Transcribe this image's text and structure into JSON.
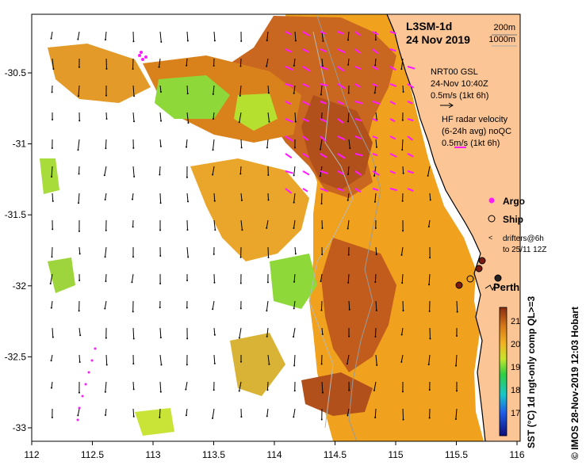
{
  "title": {
    "product": "L3SM-1d",
    "date": "24 Nov 2019"
  },
  "isobaths": [
    "200m",
    "1000m"
  ],
  "vector_legend": {
    "gsl_title": "NRT00 GSL",
    "gsl_time": "24-Nov 10:40Z",
    "gsl_scale": "0.5m/s (1kt 6h)",
    "hf_title": "HF radar velocity",
    "hf_sub": "(6-24h avg) noQC",
    "hf_scale": "0.5m/s (1kt 6h)"
  },
  "legend": {
    "argo": "Argo",
    "ship": "Ship",
    "drifters_line1": "drifters@6h",
    "drifters_line2": "to 25/11 12Z"
  },
  "place": "Perth",
  "colorbar": {
    "label": "SST (°C) 1d ngt-only comp QL>=3",
    "ticks": [
      "21",
      "20",
      "19",
      "18",
      "17"
    ]
  },
  "credit": "© IMOS 28-Nov-2019 12:03 Hobart",
  "axes": {
    "x_ticks": [
      "112",
      "112.5",
      "113",
      "113.5",
      "114",
      "114.5",
      "115",
      "115.5",
      "116"
    ],
    "y_ticks": [
      "-30.5",
      "-31",
      "-31.5",
      "-32",
      "-32.5",
      "-33"
    ]
  },
  "colors": {
    "land": "#fbc596",
    "sst_warm": "#b2501b",
    "sst_mid": "#f0a21e",
    "sst_cool": "#6fd640",
    "argo": "#ff1aff",
    "ship": "#7a1a10"
  }
}
